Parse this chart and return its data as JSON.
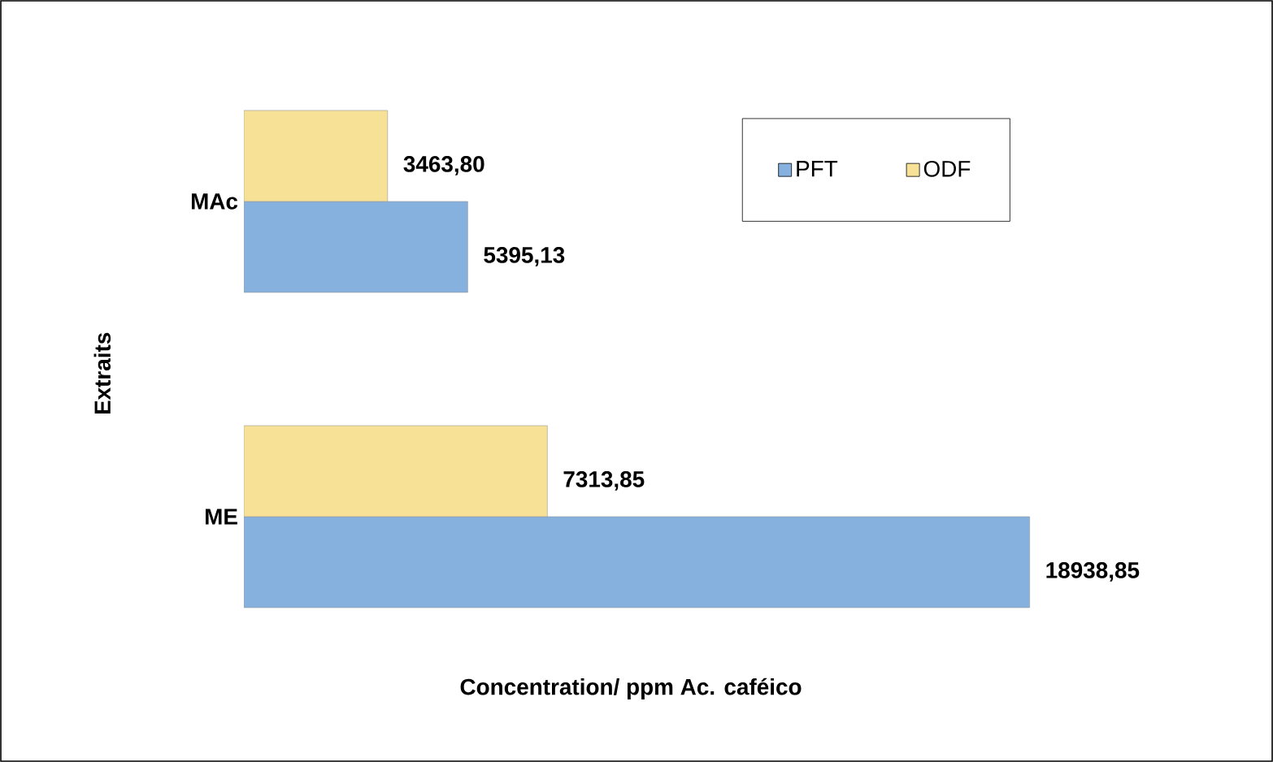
{
  "chart_data": {
    "type": "bar",
    "orientation": "horizontal",
    "xlabel": "Concentration/ ppm Ac. caféico",
    "ylabel": "Extraits",
    "categories": [
      "MAc",
      "ME"
    ],
    "legend": "top right",
    "series": [
      {
        "name": "PFT",
        "color": "#86b0de",
        "values": [
          5395.13,
          18938.85
        ],
        "value_labels": [
          "5395,13",
          "18938,85"
        ]
      },
      {
        "name": "ODF",
        "color": "#f6e196",
        "values": [
          3463.8,
          7313.85
        ],
        "value_labels": [
          "3463,80",
          "7313,85"
        ]
      }
    ]
  }
}
